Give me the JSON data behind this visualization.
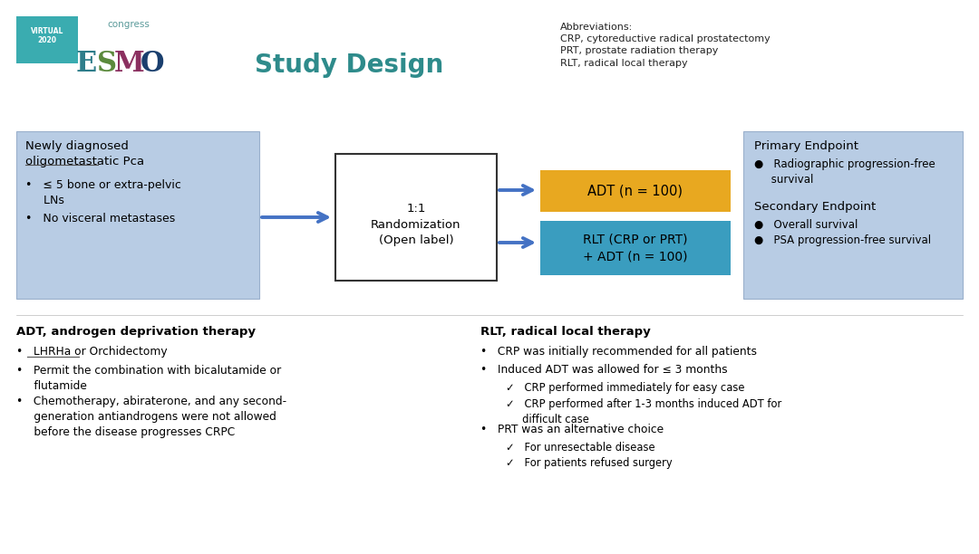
{
  "title": "Study Design",
  "title_color": "#2e8b8b",
  "title_fontsize": 20,
  "abbrev_text": "Abbreviations:\nCRP, cytoreductive radical prostatectomy\nPRT, prostate radiation therapy\nRLT, radical local therapy",
  "left_box_color": "#b8cce4",
  "rand_box_text": "1:1\nRandomization\n(Open label)",
  "adt_box_color": "#e8a820",
  "adt_box_text": "ADT (n = 100)",
  "rlt_box_color": "#3a9dbf",
  "rlt_box_text": "RLT (CRP or PRT)\n+ ADT (n = 100)",
  "right_box_color": "#b8cce4",
  "arrow_color": "#4472c4",
  "esmo_virtual_bg": "#3aacb0",
  "esmo_E_color": "#2e7d8a",
  "esmo_S_color": "#5b8a3c",
  "esmo_M_color": "#8b3060",
  "esmo_O_color": "#1a3f6e",
  "esmo_congress_color": "#5a9a9a"
}
